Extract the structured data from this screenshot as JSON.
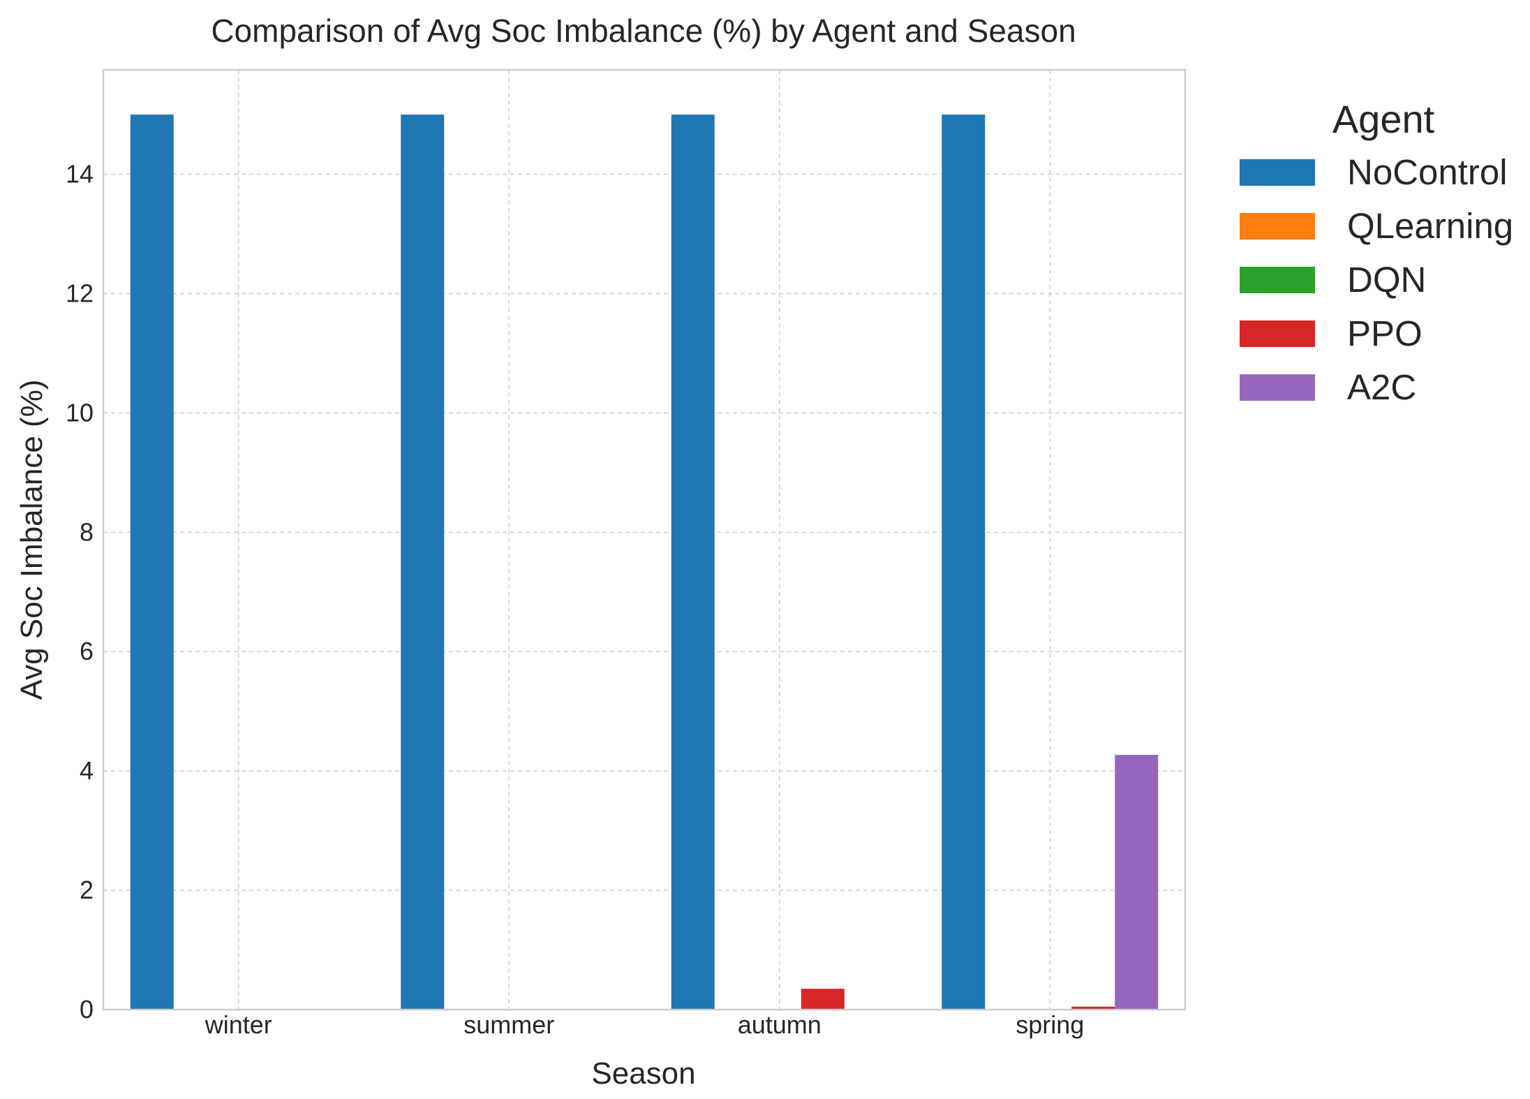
{
  "chart_data": {
    "type": "bar",
    "title": "Comparison of Avg Soc Imbalance (%) by Agent and Season",
    "xlabel": "Season",
    "ylabel": "Avg Soc Imbalance (%)",
    "categories": [
      "winter",
      "summer",
      "autumn",
      "spring"
    ],
    "ylim": [
      0,
      15.75
    ],
    "yticks": [
      0,
      2,
      4,
      6,
      8,
      10,
      12,
      14
    ],
    "grid": true,
    "legend": {
      "title": "Agent",
      "placement": "outside-right"
    },
    "series": [
      {
        "name": "NoControl",
        "color": "#1f77b4",
        "values": [
          15.0,
          15.0,
          15.0,
          15.0
        ]
      },
      {
        "name": "QLearning",
        "color": "#ff7f0e",
        "values": [
          0,
          0,
          0,
          0
        ]
      },
      {
        "name": "DQN",
        "color": "#2ca02c",
        "values": [
          0,
          0,
          0,
          0
        ]
      },
      {
        "name": "PPO",
        "color": "#d62728",
        "values": [
          0,
          0,
          0.35,
          0.05
        ]
      },
      {
        "name": "A2C",
        "color": "#9467bd",
        "values": [
          0,
          0,
          0,
          4.27
        ]
      }
    ]
  }
}
